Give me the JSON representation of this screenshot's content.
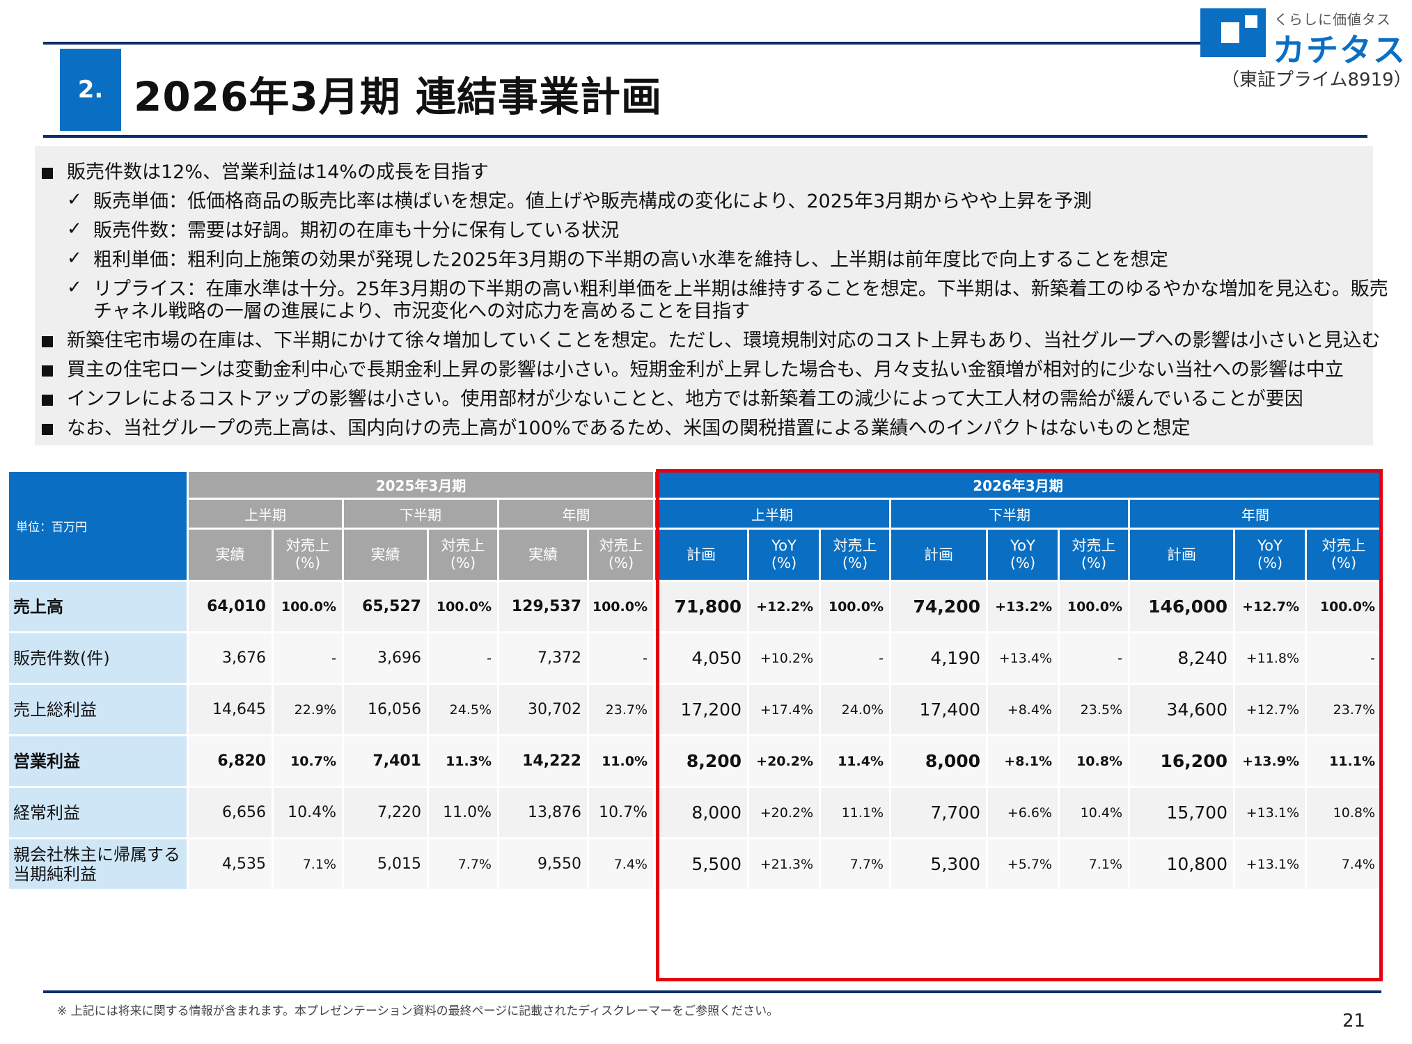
{
  "header": {
    "section_number": "2.",
    "title": "2026年3月期 連結事業計画",
    "logo_tagline": "くらしに価値タス",
    "logo_name": "カチタス",
    "stock_code": "（東証プライム8919）",
    "brand_color": "#0a6fc2"
  },
  "bullets": [
    {
      "type": "square",
      "text": "販売件数は12%、営業利益は14%の成長を目指す"
    },
    {
      "type": "check",
      "text": "販売単価：低価格商品の販売比率は横ばいを想定。値上げや販売構成の変化により、2025年3月期からやや上昇を予測"
    },
    {
      "type": "check",
      "text": "販売件数：需要は好調。期初の在庫も十分に保有している状況"
    },
    {
      "type": "check",
      "text": "粗利単価：粗利向上施策の効果が発現した2025年3月期の下半期の高い水準を維持し、上半期は前年度比で向上することを想定"
    },
    {
      "type": "check",
      "text": "リプライス：在庫水準は十分。25年3月期の下半期の高い粗利単価を上半期は維持することを想定。下半期は、新築着工のゆるやかな増加を見込む。販売"
    },
    {
      "type": "cont",
      "text": "チャネル戦略の一層の進展により、市況変化への対応力を高めることを目指す"
    },
    {
      "type": "square",
      "text": "新築住宅市場の在庫は、下半期にかけて徐々増加していくことを想定。ただし、環境規制対応のコスト上昇もあり、当社グループへの影響は小さいと見込む"
    },
    {
      "type": "square",
      "text": "買主の住宅ローンは変動金利中心で長期金利上昇の影響は小さい。短期金利が上昇した場合も、月々支払い金額増が相対的に少ない当社への影響は中立"
    },
    {
      "type": "square",
      "text": "インフレによるコストアップの影響は小さい。使用部材が少ないことと、地方では新築着工の減少によって大工人材の需給が緩んでいることが要因"
    },
    {
      "type": "square",
      "text": "なお、当社グループの売上高は、国内向けの売上高が100%であるため、米国の関税措置による業績へのインパクトはないものと想定"
    }
  ],
  "check_mark": "✓",
  "table": {
    "unit_label": "単位：百万円",
    "fy2025_label": "2025年3月期",
    "fy2026_label": "2026年3月期",
    "first_half": "上半期",
    "second_half": "下半期",
    "full_year": "年間",
    "actual": "実績",
    "plan": "計画",
    "yoy": "YoY\n(%)",
    "ratio": "対売上\n(%)",
    "rows": [
      {
        "label": "売上高",
        "bold": true,
        "values": [
          "64,010",
          "100.0%",
          "65,527",
          "100.0%",
          "129,537",
          "100.0%",
          "71,800",
          "+12.2%",
          "100.0%",
          "74,200",
          "+13.2%",
          "100.0%",
          "146,000",
          "+12.7%",
          "100.0%"
        ]
      },
      {
        "label": "販売件数(件)",
        "bold": false,
        "values": [
          "3,676",
          "-",
          "3,696",
          "-",
          "7,372",
          "-",
          "4,050",
          "+10.2%",
          "-",
          "4,190",
          "+13.4%",
          "-",
          "8,240",
          "+11.8%",
          "-"
        ]
      },
      {
        "label": "売上総利益",
        "bold": false,
        "values": [
          "14,645",
          "22.9%",
          "16,056",
          "24.5%",
          "30,702",
          "23.7%",
          "17,200",
          "+17.4%",
          "24.0%",
          "17,400",
          "+8.4%",
          "23.5%",
          "34,600",
          "+12.7%",
          "23.7%"
        ]
      },
      {
        "label": "営業利益",
        "bold": true,
        "values": [
          "6,820",
          "10.7%",
          "7,401",
          "11.3%",
          "14,222",
          "11.0%",
          "8,200",
          "+20.2%",
          "11.4%",
          "8,000",
          "+8.1%",
          "10.8%",
          "16,200",
          "+13.9%",
          "11.1%"
        ]
      },
      {
        "label": "経常利益",
        "bold": false,
        "values": [
          "6,656",
          "10.4%",
          "7,220",
          "11.0%",
          "13,876",
          "10.7%",
          "8,000",
          "+20.2%",
          "11.1%",
          "7,700",
          "+6.6%",
          "10.4%",
          "15,700",
          "+13.1%",
          "10.8%"
        ]
      },
      {
        "label": "親会社株主に帰属する\n当期純利益",
        "bold": false,
        "values": [
          "4,535",
          "7.1%",
          "5,015",
          "7.7%",
          "9,550",
          "7.4%",
          "5,500",
          "+21.3%",
          "7.7%",
          "5,300",
          "+5.7%",
          "7.1%",
          "10,800",
          "+13.1%",
          "7.4%"
        ]
      }
    ]
  },
  "footer": {
    "note": "※ 上記には将来に関する情報が含まれます。本プレゼンテーション資料の最終ページに記載されたディスクレーマーをご参照ください。",
    "page_number": "21"
  }
}
